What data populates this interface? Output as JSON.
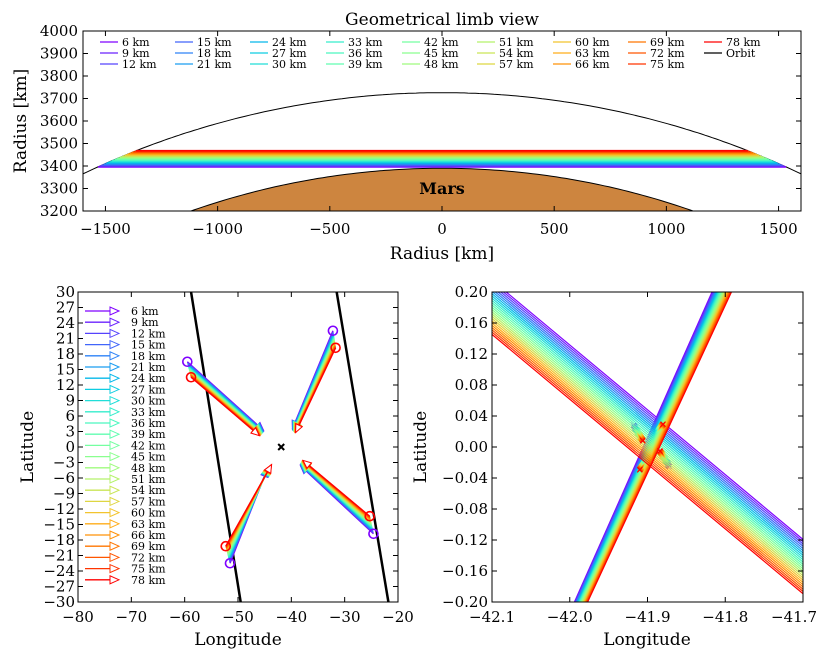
{
  "colors": {
    "spectrum": [
      "#7f00ff",
      "#6a23fe",
      "#5446fd",
      "#3e69fa",
      "#2a87f6",
      "#16a3f0",
      "#00bfe8",
      "#12d3df",
      "#28e4d4",
      "#3ef3c7",
      "#54fcb9",
      "#6afea9",
      "#80ff98",
      "#96fe85",
      "#acf671",
      "#c2ea5d",
      "#d8dc48",
      "#eec933",
      "#ffb31e",
      "#ff970a",
      "#ff7a00",
      "#ff5900",
      "#ff3600",
      "#ff0000"
    ],
    "orbit": "#000000",
    "mars": "#cd853f"
  },
  "chart_data": [
    {
      "type": "line",
      "title": "Geometrical limb view",
      "xlabel": "Radius [km]",
      "ylabel": "Radius [km]",
      "xlim": [
        -1600,
        1600
      ],
      "ylim": [
        3200,
        4000
      ],
      "xticks": [
        "−1500",
        "−1000",
        "−500",
        "0",
        "500",
        "1000",
        "1500"
      ],
      "yticks": [
        "3200",
        "3300",
        "3400",
        "3500",
        "3600",
        "3700",
        "3800",
        "3900",
        "4000"
      ],
      "mars_label": "Mars",
      "mars_radius": 3390,
      "orbit_radius": 3726,
      "series": [
        {
          "name": "6 km",
          "value": 6
        },
        {
          "name": "9 km",
          "value": 9
        },
        {
          "name": "12 km",
          "value": 12
        },
        {
          "name": "15 km",
          "value": 15
        },
        {
          "name": "18 km",
          "value": 18
        },
        {
          "name": "21 km",
          "value": 21
        },
        {
          "name": "24 km",
          "value": 24
        },
        {
          "name": "27 km",
          "value": 27
        },
        {
          "name": "30 km",
          "value": 30
        },
        {
          "name": "33 km",
          "value": 33
        },
        {
          "name": "36 km",
          "value": 36
        },
        {
          "name": "39 km",
          "value": 39
        },
        {
          "name": "42 km",
          "value": 42
        },
        {
          "name": "45 km",
          "value": 45
        },
        {
          "name": "48 km",
          "value": 48
        },
        {
          "name": "51 km",
          "value": 51
        },
        {
          "name": "54 km",
          "value": 54
        },
        {
          "name": "57 km",
          "value": 57
        },
        {
          "name": "60 km",
          "value": 60
        },
        {
          "name": "63 km",
          "value": 63
        },
        {
          "name": "66 km",
          "value": 66
        },
        {
          "name": "69 km",
          "value": 69
        },
        {
          "name": "72 km",
          "value": 72
        },
        {
          "name": "75 km",
          "value": 75
        },
        {
          "name": "78 km",
          "value": 78
        },
        {
          "name": "Orbit"
        }
      ],
      "legend": "top, 9 columns",
      "grid": false
    },
    {
      "type": "line",
      "xlabel": "Longitude",
      "ylabel": "Latitude",
      "xlim": [
        -80,
        -20
      ],
      "ylim": [
        -30,
        30
      ],
      "xticks": [
        "−80",
        "−70",
        "−60",
        "−50",
        "−40",
        "−30",
        "−20"
      ],
      "yticks": [
        "−30",
        "−27",
        "−24",
        "−21",
        "−18",
        "−15",
        "−12",
        "−9",
        "−6",
        "−3",
        "0",
        "3",
        "6",
        "9",
        "12",
        "15",
        "18",
        "21",
        "24",
        "27",
        "30"
      ],
      "center": [
        -41.9,
        0
      ],
      "arrows": [
        {
          "from_6": [
            -59.5,
            16.5
          ],
          "from_78": [
            -58.8,
            13.5
          ],
          "to_6": [
            -45.2,
            3.2
          ],
          "to_78": [
            -46.0,
            2.2
          ]
        },
        {
          "from_6": [
            -32.2,
            22.5
          ],
          "from_78": [
            -31.7,
            19.2
          ],
          "to_6": [
            -39.8,
            3.5
          ],
          "to_78": [
            -39.2,
            2.8
          ]
        },
        {
          "from_6": [
            -51.5,
            -22.5
          ],
          "from_78": [
            -52.3,
            -19.2
          ],
          "to_6": [
            -44.5,
            -4.2
          ],
          "to_78": [
            -43.7,
            -3.4
          ]
        },
        {
          "from_6": [
            -24.6,
            -16.8
          ],
          "from_78": [
            -25.3,
            -13.4
          ],
          "to_6": [
            -38.3,
            -3.6
          ],
          "to_78": [
            -37.8,
            -2.6
          ]
        }
      ],
      "orbit_tracks": [
        {
          "x": [
            -58.8,
            -49.5
          ],
          "y": [
            30,
            -30
          ]
        },
        {
          "x": [
            -31.5,
            -21.8
          ],
          "y": [
            30,
            -30
          ]
        }
      ],
      "legend": "left, single column",
      "grid": false
    },
    {
      "type": "line",
      "xlabel": "Longitude",
      "ylabel": "Latitude",
      "xlim": [
        -42.1,
        -41.7
      ],
      "ylim": [
        -0.2,
        0.2
      ],
      "xticks": [
        "−42.1",
        "−42.0",
        "−41.9",
        "−41.8",
        "−41.7"
      ],
      "yticks": [
        "−0.20",
        "−0.16",
        "−0.12",
        "−0.08",
        "−0.04",
        "0.00",
        "0.04",
        "0.08",
        "0.12",
        "0.16",
        "0.20"
      ],
      "center": [
        -41.895,
        0.0
      ],
      "grid": false
    }
  ]
}
